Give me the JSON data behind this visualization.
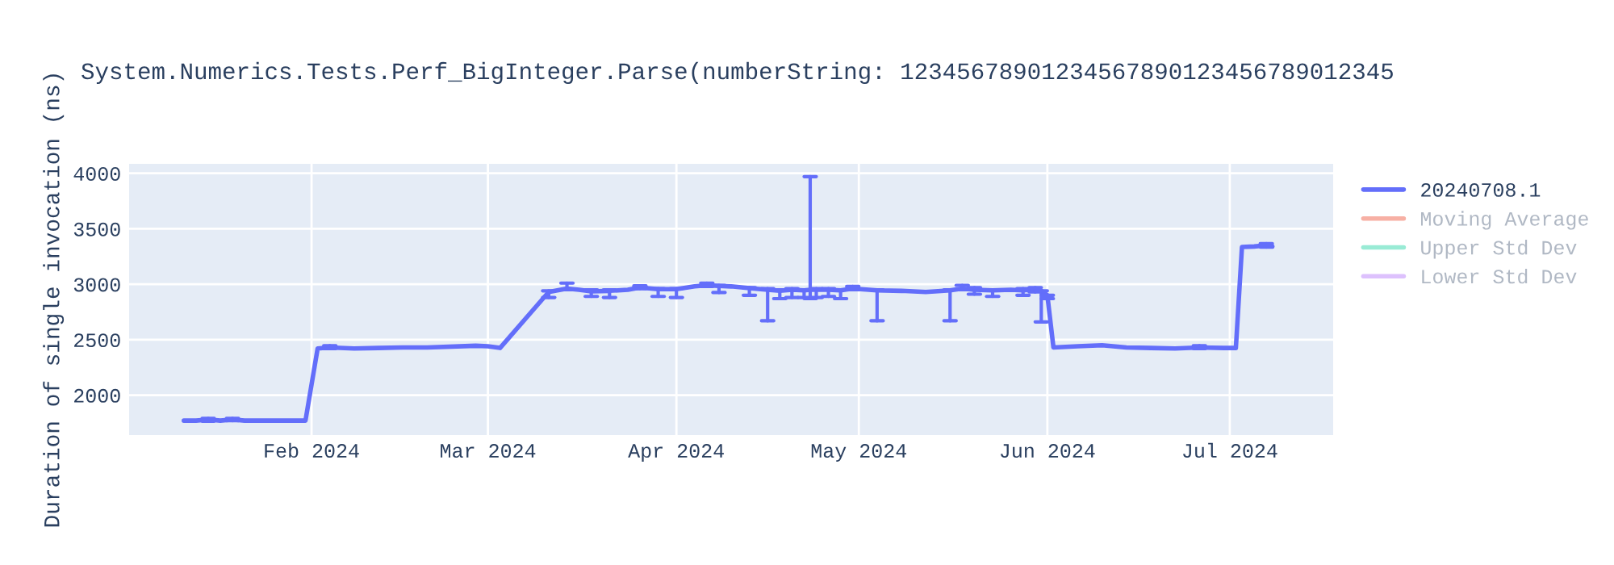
{
  "chart_data": {
    "type": "line",
    "title": "System.Numerics.Tests.Perf_BigInteger.Parse(numberString: 12345678901234567890123456789012345",
    "ylabel": "Duration of single invocation (ns)",
    "x": [
      "2024-01-11",
      "2024-01-13",
      "2024-01-15",
      "2024-01-17",
      "2024-01-19",
      "2024-01-21",
      "2024-01-23",
      "2024-01-25",
      "2024-01-27",
      "2024-01-29",
      "2024-01-31",
      "2024-02-02",
      "2024-02-04",
      "2024-02-08",
      "2024-02-12",
      "2024-02-16",
      "2024-02-20",
      "2024-02-28",
      "2024-03-01",
      "2024-03-03",
      "2024-03-11",
      "2024-03-14",
      "2024-03-16",
      "2024-03-18",
      "2024-03-21",
      "2024-03-24",
      "2024-03-26",
      "2024-03-29",
      "2024-04-01",
      "2024-04-04",
      "2024-04-06",
      "2024-04-08",
      "2024-04-10",
      "2024-04-13",
      "2024-04-16",
      "2024-04-18",
      "2024-04-20",
      "2024-04-22",
      "2024-04-23",
      "2024-04-24",
      "2024-04-26",
      "2024-04-28",
      "2024-04-30",
      "2024-05-04",
      "2024-05-08",
      "2024-05-12",
      "2024-05-16",
      "2024-05-18",
      "2024-05-20",
      "2024-05-23",
      "2024-05-26",
      "2024-05-28",
      "2024-05-30",
      "2024-05-31",
      "2024-06-01",
      "2024-06-02",
      "2024-06-06",
      "2024-06-10",
      "2024-06-14",
      "2024-06-18",
      "2024-06-22",
      "2024-06-26",
      "2024-06-30",
      "2024-07-02",
      "2024-07-03",
      "2024-07-05",
      "2024-07-07",
      "2024-07-08"
    ],
    "series": [
      {
        "name": "20240708.1",
        "color": "#636efa",
        "values": [
          1770,
          1770,
          1780,
          1770,
          1780,
          1770,
          1770,
          1770,
          1770,
          1770,
          1770,
          2420,
          2430,
          2420,
          2425,
          2430,
          2430,
          2445,
          2440,
          2425,
          2930,
          2960,
          2950,
          2935,
          2940,
          2950,
          2970,
          2955,
          2955,
          2980,
          2990,
          2985,
          2980,
          2965,
          2950,
          2940,
          2950,
          2945,
          2950,
          2950,
          2950,
          2945,
          2960,
          2945,
          2940,
          2930,
          2945,
          2960,
          2950,
          2945,
          2950,
          2945,
          2950,
          2940,
          2900,
          2430,
          2440,
          2450,
          2430,
          2425,
          2420,
          2430,
          2425,
          2425,
          3335,
          3340,
          3350,
          3340
        ],
        "errors": [
          null,
          null,
          [
            1765,
            1790
          ],
          null,
          [
            1770,
            1790
          ],
          null,
          null,
          null,
          null,
          null,
          null,
          null,
          [
            2420,
            2445
          ],
          null,
          null,
          null,
          null,
          null,
          null,
          null,
          [
            2880,
            2940
          ],
          [
            2950,
            3010
          ],
          null,
          [
            2890,
            2950
          ],
          [
            2880,
            2950
          ],
          null,
          [
            2960,
            2985
          ],
          [
            2890,
            2960
          ],
          [
            2880,
            2960
          ],
          null,
          [
            2980,
            3010
          ],
          [
            2925,
            2990
          ],
          null,
          [
            2900,
            2970
          ],
          [
            2670,
            2960
          ],
          [
            2870,
            2950
          ],
          [
            2880,
            2960
          ],
          [
            2880,
            2950
          ],
          [
            2870,
            3970
          ],
          [
            2880,
            2960
          ],
          [
            2890,
            2960
          ],
          [
            2870,
            2950
          ],
          [
            2950,
            2980
          ],
          [
            2670,
            2950
          ],
          null,
          null,
          [
            2670,
            2950
          ],
          [
            2950,
            2990
          ],
          [
            2910,
            2970
          ],
          [
            2890,
            2950
          ],
          null,
          [
            2900,
            2960
          ],
          [
            2930,
            2970
          ],
          [
            2660,
            2940
          ],
          [
            2870,
            2900
          ],
          null,
          null,
          null,
          null,
          null,
          null,
          [
            2420,
            2445
          ],
          null,
          null,
          null,
          null,
          [
            3335,
            3365
          ],
          null
        ]
      },
      {
        "name": "Moving Average",
        "color": "#f7b0a4",
        "values": [
          null,
          null,
          null,
          null,
          null,
          null,
          null,
          null,
          null,
          null,
          null,
          null,
          null,
          null,
          null,
          null,
          null,
          null,
          null,
          null,
          null,
          null,
          null,
          null,
          null,
          null,
          null,
          null,
          null,
          null,
          null,
          null,
          null,
          null,
          null,
          null,
          null,
          null,
          null,
          null,
          null,
          null,
          null,
          null,
          null,
          null,
          null,
          null,
          null,
          null,
          null,
          null,
          null,
          null,
          null,
          null,
          null,
          null,
          null,
          null,
          null,
          null,
          null,
          null,
          null,
          null,
          null,
          null
        ]
      },
      {
        "name": "Upper Std Dev",
        "color": "#99ebd5",
        "values": [
          null,
          null,
          null,
          null,
          null,
          null,
          null,
          null,
          null,
          null,
          null,
          null,
          null,
          null,
          null,
          null,
          null,
          null,
          null,
          null,
          null,
          null,
          null,
          null,
          null,
          null,
          null,
          null,
          null,
          null,
          null,
          null,
          null,
          null,
          null,
          null,
          null,
          null,
          null,
          null,
          null,
          null,
          null,
          null,
          null,
          null,
          null,
          null,
          null,
          null,
          null,
          null,
          null,
          null,
          null,
          null,
          null,
          null,
          null,
          null,
          null,
          null,
          null,
          null,
          null,
          null,
          null,
          null
        ]
      },
      {
        "name": "Lower Std Dev",
        "color": "#ddc1fd",
        "values": [
          null,
          null,
          null,
          null,
          null,
          null,
          null,
          null,
          null,
          null,
          null,
          null,
          null,
          null,
          null,
          null,
          null,
          null,
          null,
          null,
          null,
          null,
          null,
          null,
          null,
          null,
          null,
          null,
          null,
          null,
          null,
          null,
          null,
          null,
          null,
          null,
          null,
          null,
          null,
          null,
          null,
          null,
          null,
          null,
          null,
          null,
          null,
          null,
          null,
          null,
          null,
          null,
          null,
          null,
          null,
          null,
          null,
          null,
          null,
          null,
          null,
          null,
          null,
          null,
          null,
          null,
          null,
          null
        ]
      }
    ],
    "xlim": [
      "2024-01-02",
      "2024-07-18"
    ],
    "xticks": [
      {
        "value": "2024-02-01",
        "label": "Feb 2024"
      },
      {
        "value": "2024-03-01",
        "label": "Mar 2024"
      },
      {
        "value": "2024-04-01",
        "label": "Apr 2024"
      },
      {
        "value": "2024-05-01",
        "label": "May 2024"
      },
      {
        "value": "2024-06-01",
        "label": "Jun 2024"
      },
      {
        "value": "2024-07-01",
        "label": "Jul 2024"
      }
    ],
    "ylim": [
      1640,
      4085
    ],
    "yticks": [
      2000,
      2500,
      3000,
      3500,
      4000
    ],
    "grid": true,
    "legend": "top right"
  }
}
